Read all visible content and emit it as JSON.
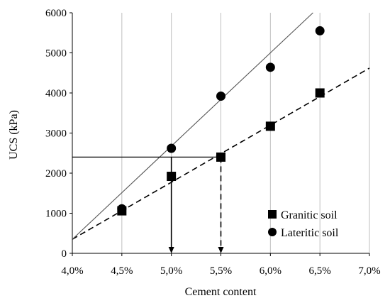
{
  "chart_data": {
    "type": "scatter",
    "xlabel": "Cement content",
    "ylabel": "UCS (kPa)",
    "xlim": [
      4.0,
      7.0
    ],
    "ylim": [
      0,
      6000
    ],
    "x_ticks": [
      4.0,
      4.5,
      5.0,
      5.5,
      6.0,
      6.5,
      7.0
    ],
    "x_tick_labels": [
      "4,0%",
      "4,5%",
      "5,0%",
      "5,5%",
      "6,0%",
      "6,5%",
      "7,0%"
    ],
    "y_ticks": [
      0,
      1000,
      2000,
      3000,
      4000,
      5000,
      6000
    ],
    "y_tick_labels": [
      "0",
      "1000",
      "2000",
      "3000",
      "4000",
      "5000",
      "6000"
    ],
    "grid": "vertical",
    "legend_position": "bottom-right",
    "series": [
      {
        "name": "Granitic soil",
        "marker": "square",
        "color": "#000000",
        "x": [
          4.5,
          5.0,
          5.5,
          6.0,
          6.5
        ],
        "y": [
          1060,
          1920,
          2400,
          3170,
          4000
        ],
        "trendline": {
          "style": "dashed",
          "from": [
            4.0,
            350
          ],
          "to": [
            7.0,
            4620
          ]
        }
      },
      {
        "name": "Lateritic soil",
        "marker": "circle",
        "color": "#000000",
        "x": [
          4.5,
          5.0,
          5.5,
          6.0,
          6.5
        ],
        "y": [
          1110,
          2620,
          3920,
          4640,
          5550
        ],
        "trendline": {
          "style": "solid",
          "from": [
            4.0,
            350
          ],
          "to": [
            6.43,
            6000
          ]
        }
      }
    ],
    "annotations": [
      {
        "type": "hline",
        "y": 2400,
        "x_from": 4.0,
        "x_to": 5.5
      },
      {
        "type": "arrow",
        "style": "solid",
        "x": 5.0,
        "y_from": 2400,
        "y_to": 0
      },
      {
        "type": "arrow",
        "style": "dashed",
        "x": 5.5,
        "y_from": 2400,
        "y_to": 0
      }
    ]
  }
}
